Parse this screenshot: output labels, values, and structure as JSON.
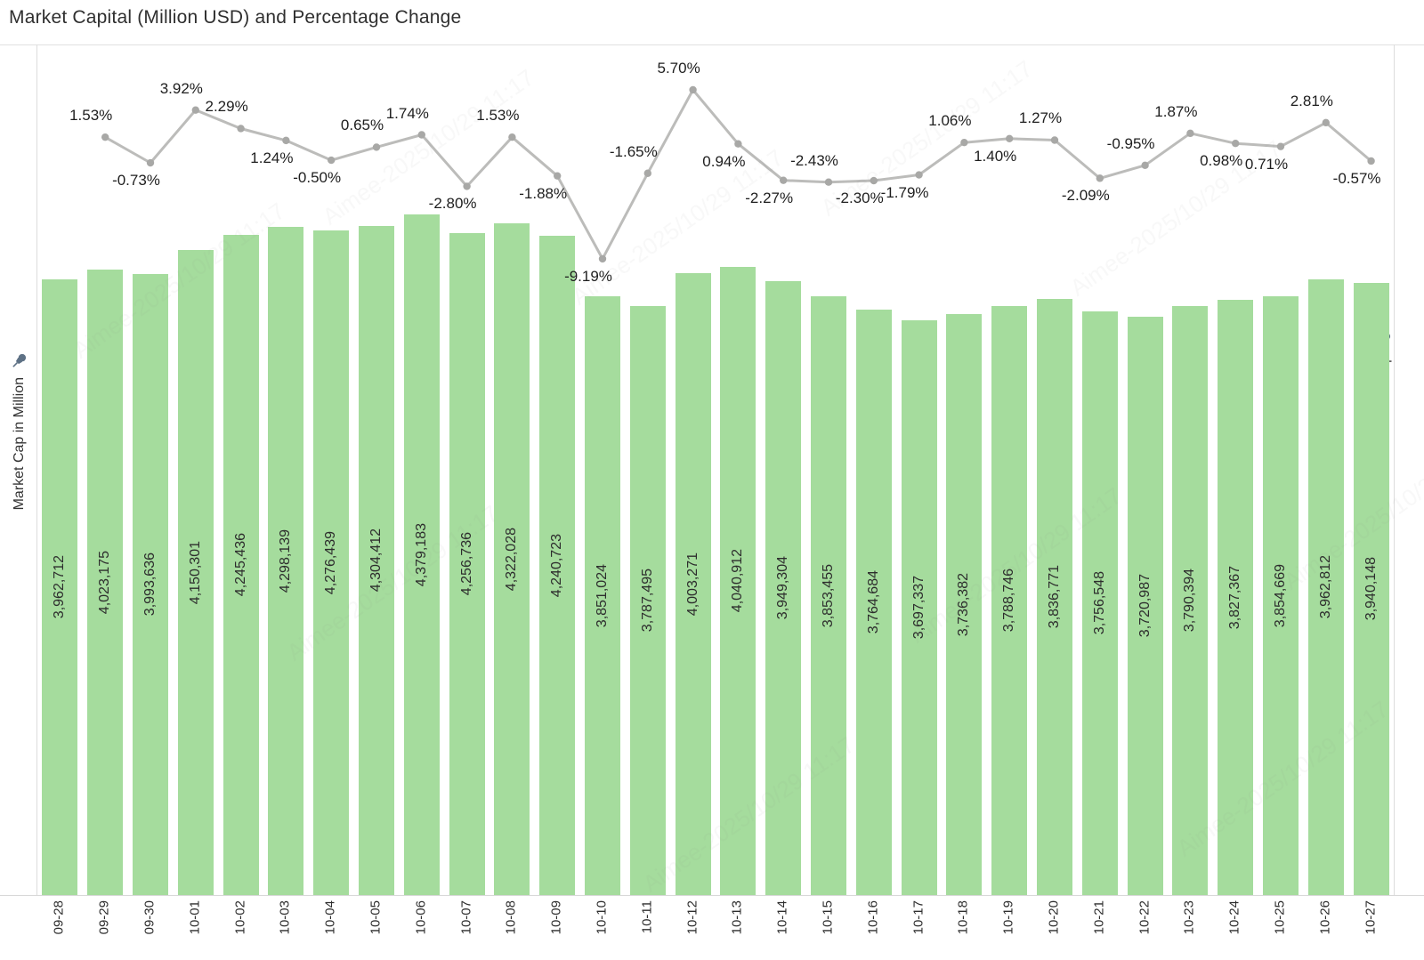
{
  "title": "Market Capital (Million USD) and Percentage Change",
  "axes": {
    "left_label": "Market Cap in Million",
    "right_label": "% Difference in Market Cap",
    "ticks_visible": false
  },
  "icons": {
    "left_pin": "pin-icon",
    "right_pin": "pin-icon"
  },
  "watermark": "Aimee-2025/10/29 11:17",
  "colors": {
    "bar_fill": "#a5dc9d",
    "line": "#bcbcba",
    "marker": "#a8a8a6",
    "pct_text": "#1e1e1e",
    "bar_text": "#2d2d2d",
    "date_text": "#2e2e2e",
    "axis_border": "#d8d8d8",
    "pin": "#5e7185",
    "title_text": "#2f2f2f"
  },
  "chart_data": [
    {
      "type": "bar",
      "title": "Market Capital (Million USD) and Percentage Change",
      "categories": [
        "09-28",
        "09-29",
        "09-30",
        "10-01",
        "10-02",
        "10-03",
        "10-04",
        "10-05",
        "10-06",
        "10-07",
        "10-08",
        "10-09",
        "10-10",
        "10-11",
        "10-12",
        "10-13",
        "10-14",
        "10-15",
        "10-16",
        "10-17",
        "10-18",
        "10-19",
        "10-20",
        "10-21",
        "10-22",
        "10-23",
        "10-24",
        "10-25",
        "10-26",
        "10-27"
      ],
      "values": [
        3962712,
        4023175,
        3993636,
        4150301,
        4245436,
        4298139,
        4276439,
        4304412,
        4379183,
        4256736,
        4322028,
        4240723,
        3851024,
        3787495,
        4003271,
        4040912,
        3949304,
        3853455,
        3764684,
        3697337,
        3736382,
        3788746,
        3836771,
        3756548,
        3720987,
        3790394,
        3827367,
        3854669,
        3962812,
        3940148
      ],
      "xlabel": "",
      "ylabel": "Market Cap in Million",
      "ylim": [
        0,
        4400000
      ],
      "grid": false,
      "value_label_format": "thousands-comma, rotated vertical inside bar"
    },
    {
      "type": "line",
      "x": [
        "09-29",
        "09-30",
        "10-01",
        "10-02",
        "10-03",
        "10-04",
        "10-05",
        "10-06",
        "10-07",
        "10-08",
        "10-09",
        "10-10",
        "10-11",
        "10-12",
        "10-13",
        "10-14",
        "10-15",
        "10-16",
        "10-17",
        "10-18",
        "10-19",
        "10-20",
        "10-21",
        "10-22",
        "10-23",
        "10-24",
        "10-25",
        "10-26",
        "10-27"
      ],
      "values": [
        1.53,
        -0.73,
        3.92,
        2.29,
        1.24,
        -0.5,
        0.65,
        1.74,
        -2.8,
        1.53,
        -1.88,
        -9.19,
        -1.65,
        5.7,
        0.94,
        -2.27,
        -2.43,
        -2.3,
        -1.79,
        1.06,
        1.4,
        1.27,
        -2.09,
        -0.95,
        1.87,
        0.98,
        0.71,
        2.81,
        -0.57
      ],
      "label_side": [
        "above",
        "below",
        "above",
        "above",
        "below",
        "below",
        "above",
        "above",
        "below",
        "above",
        "below",
        "below",
        "above",
        "above",
        "below",
        "below",
        "above",
        "below",
        "below",
        "above",
        "below",
        "above",
        "below",
        "above",
        "above",
        "below",
        "below",
        "above",
        "below"
      ],
      "ylabel": "% Difference in Market Cap",
      "ylim": [
        -10,
        9.7
      ],
      "grid": false,
      "legend": "none",
      "value_label_format": "two decimals with % suffix"
    }
  ]
}
